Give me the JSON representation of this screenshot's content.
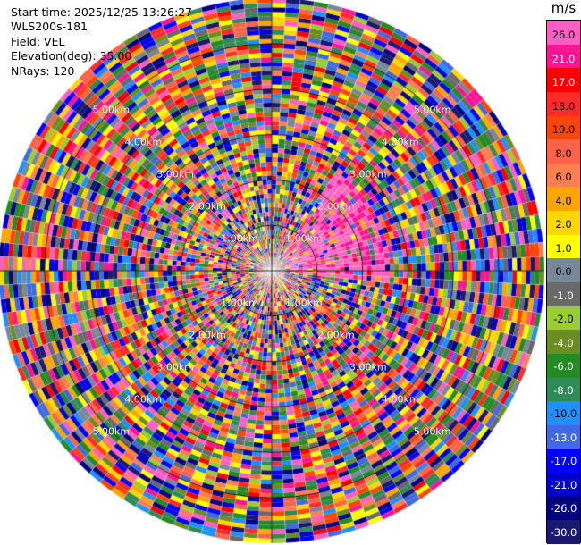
{
  "info": {
    "start_time": "Start time: 2025/12/25 13:26:27",
    "site": "WLS200s-181",
    "field": "Field: VEL",
    "elevation": "Elevation(deg): 35.00",
    "nrays": "NRays: 120"
  },
  "chart_data": {
    "type": "heatmap",
    "projection": "polar PPI",
    "field": "VEL",
    "units": "m/s",
    "nrays": 120,
    "elevation_deg": 35.0,
    "max_range_km": 6.0,
    "range_ring_labels": [
      "1.00km",
      "2.00km",
      "3.00km",
      "4.00km",
      "5.00km"
    ],
    "colorbar": {
      "ticks": [
        26.0,
        21.0,
        17.0,
        13.0,
        10.0,
        8.0,
        6.0,
        4.0,
        2.0,
        1.0,
        0.0,
        -1.0,
        -2.0,
        -4.0,
        -6.0,
        -8.0,
        -10.0,
        -13.0,
        -17.0,
        -21.0,
        -26.0,
        -30.0
      ],
      "tick_labels": [
        "26.0",
        "21.0",
        "17.0",
        "13.0",
        "10.0",
        "8.0",
        "6.0",
        "4.0",
        "2.0",
        "1.0",
        "0.0",
        "-1.0",
        "-2.0",
        "-4.0",
        "-6.0",
        "-8.0",
        "-10.0",
        "-13.0",
        "-17.0",
        "-21.0",
        "-26.0",
        "-30.0"
      ],
      "colors": [
        "#ff5fc5",
        "#ff1493",
        "#ff0000",
        "#ff2a2a",
        "#ff4500",
        "#ff6347",
        "#ff7f50",
        "#ffa500",
        "#ffd700",
        "#ffff00",
        "#778899",
        "#696969",
        "#9acd32",
        "#6b8e23",
        "#228b22",
        "#2e8b57",
        "#1e90ff",
        "#4169e1",
        "#0000ff",
        "#0000cd",
        "#000080",
        "#191970"
      ]
    },
    "pattern": "noisy velocity field with a pink (positive) sector toward north-east near the radar"
  }
}
